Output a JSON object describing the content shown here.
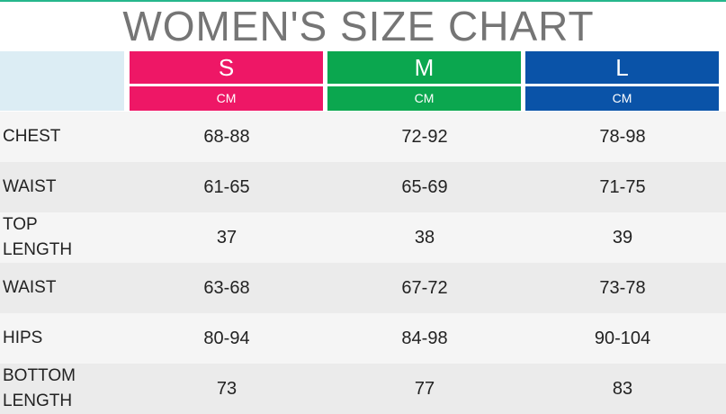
{
  "title": "WOMEN'S SIZE CHART",
  "colors": {
    "s": "#ee1766",
    "m": "#0ba74f",
    "l": "#0a53a8",
    "topline": "#26b78c"
  },
  "sizes": [
    {
      "label": "S",
      "unit": "CM"
    },
    {
      "label": "M",
      "unit": "CM"
    },
    {
      "label": "L",
      "unit": "CM"
    }
  ],
  "rows": [
    {
      "label": "CHEST",
      "values": [
        "68-88",
        "72-92",
        "78-98"
      ]
    },
    {
      "label": "WAIST",
      "values": [
        "61-65",
        "65-69",
        "71-75"
      ]
    },
    {
      "label": "TOP\nLENGTH",
      "values": [
        "37",
        "38",
        "39"
      ]
    },
    {
      "label": "WAIST",
      "values": [
        "63-68",
        "67-72",
        "73-78"
      ]
    },
    {
      "label": "HIPS",
      "values": [
        "80-94",
        "84-98",
        "90-104"
      ]
    },
    {
      "label": "BOTTOM\nLENGTH",
      "values": [
        "73",
        "77",
        "83"
      ]
    }
  ]
}
